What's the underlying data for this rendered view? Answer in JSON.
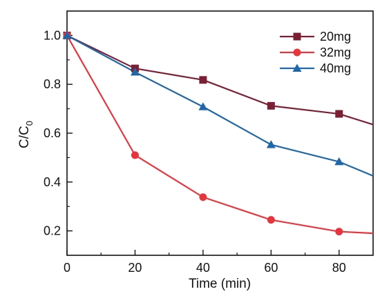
{
  "chart_data": {
    "type": "line",
    "xlabel": "Time (min)",
    "ylabel": {
      "main": "C/C",
      "subscript": "0"
    },
    "xlim": [
      0,
      90
    ],
    "ylim": [
      0.1,
      1.1
    ],
    "xticks": [
      0,
      20,
      40,
      60,
      80
    ],
    "xtick_labels": [
      "0",
      "20",
      "40",
      "60",
      "80"
    ],
    "yticks": [
      0.2,
      0.4,
      0.6,
      0.8,
      1.0
    ],
    "ytick_labels": [
      "0.2",
      "0.4",
      "0.6",
      "0.8",
      "1.0"
    ],
    "grid": false,
    "legend_position": "top-right",
    "series": [
      {
        "name": "20mg",
        "color": "#7b1f35",
        "marker": "square",
        "x": [
          0,
          20,
          40,
          60,
          80,
          90
        ],
        "y": [
          1.0,
          0.865,
          0.818,
          0.712,
          0.679,
          0.635
        ],
        "marker_x": [
          0,
          20,
          40,
          60,
          80
        ]
      },
      {
        "name": "32mg",
        "color": "#e8343d",
        "marker": "circle",
        "x": [
          0,
          20,
          40,
          60,
          80,
          90
        ],
        "y": [
          1.0,
          0.51,
          0.338,
          0.245,
          0.197,
          0.19
        ],
        "marker_x": [
          0,
          20,
          40,
          60,
          80
        ]
      },
      {
        "name": "40mg",
        "color": "#1e67a8",
        "marker": "triangle",
        "x": [
          0,
          20,
          40,
          60,
          80,
          90
        ],
        "y": [
          1.0,
          0.85,
          0.708,
          0.553,
          0.483,
          0.425
        ],
        "marker_x": [
          0,
          20,
          40,
          60,
          80
        ]
      }
    ]
  }
}
